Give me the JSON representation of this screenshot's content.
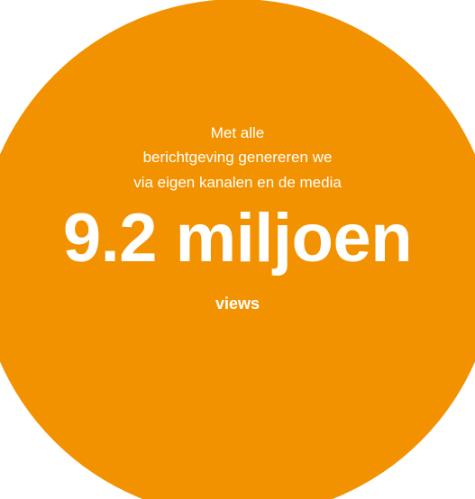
{
  "infographic": {
    "intro_lines": [
      "Met alle",
      "berichtgeving genereren we",
      "via eigen kanalen en de media"
    ],
    "headline_value": "9.2 miljoen",
    "unit_label": "views",
    "circle_color": "#f39200",
    "text_color": "#ffffff"
  }
}
